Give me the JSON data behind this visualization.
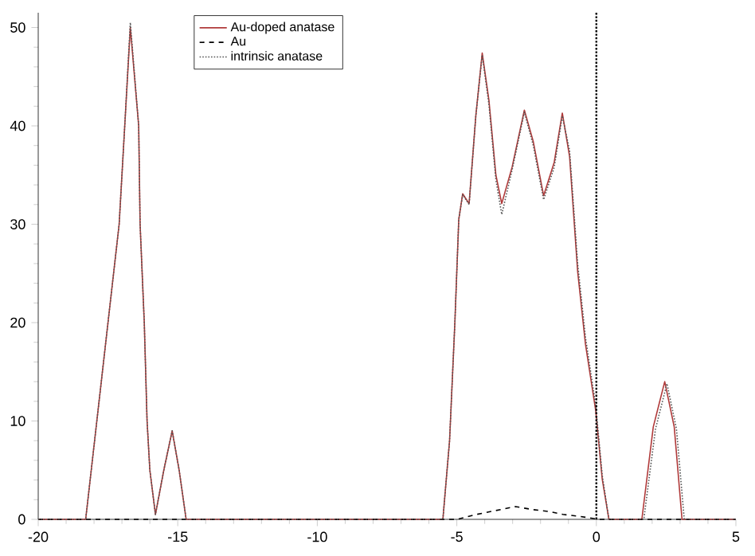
{
  "chart_data": {
    "type": "line",
    "xlim": [
      -20,
      5
    ],
    "ylim": [
      0,
      51.5
    ],
    "xticks": [
      -20,
      -15,
      -10,
      -5,
      0,
      5
    ],
    "yticks": [
      0,
      10,
      20,
      30,
      40,
      50
    ],
    "grid": false,
    "legend": "top",
    "marker": "none",
    "ref_lines": [
      {
        "axis": "x",
        "value": 0,
        "color": "#000000",
        "line_style": "dotted"
      }
    ],
    "series": [
      {
        "name": "Au-doped anatase",
        "color": "#b03a3a",
        "line_style": "solid",
        "x": [
          -20,
          -18.3,
          -17.9,
          -17.5,
          -17.1,
          -16.9,
          -16.7,
          -16.4,
          -16.35,
          -16.2,
          -16.1,
          -16.0,
          -15.8,
          -15.5,
          -15.2,
          -14.95,
          -14.7,
          -5.5,
          -5.26,
          -5.07,
          -4.93,
          -4.79,
          -4.56,
          -4.32,
          -4.09,
          -3.85,
          -3.6,
          -3.39,
          -3.02,
          -2.58,
          -2.26,
          -1.89,
          -1.51,
          -1.22,
          -0.96,
          -0.67,
          -0.39,
          -0.02,
          0.21,
          0.45,
          1.63,
          2.04,
          2.45,
          2.79,
          3.07,
          5
        ],
        "values": [
          0,
          0,
          10,
          20,
          30,
          40,
          50,
          40,
          30,
          20,
          10,
          5,
          0.5,
          5,
          9,
          5,
          0,
          0,
          8,
          20,
          30.5,
          33.1,
          32.1,
          41,
          47.4,
          42.6,
          35,
          32.1,
          35.8,
          41.6,
          38.4,
          32.9,
          36.3,
          41.3,
          36.9,
          25.2,
          17.8,
          11,
          4.1,
          0,
          0,
          9.4,
          14,
          9.4,
          0,
          0
        ]
      },
      {
        "name": "Au",
        "color": "#000000",
        "line_style": "dashed",
        "x": [
          -20,
          -5,
          -4.3,
          -3.6,
          -2.9,
          -2.3,
          -1.7,
          -1.2,
          -0.6,
          0.1,
          5
        ],
        "values": [
          0,
          0,
          0.5,
          0.9,
          1.3,
          1.0,
          0.8,
          0.5,
          0.3,
          0,
          0
        ]
      },
      {
        "name": "intrinsic anatase",
        "color": "#555555",
        "line_style": "dotted",
        "x": [
          -20,
          -18.3,
          -17.9,
          -17.5,
          -17.1,
          -16.9,
          -16.7,
          -16.4,
          -16.35,
          -16.2,
          -16.1,
          -16.0,
          -15.8,
          -15.5,
          -15.2,
          -14.95,
          -14.7,
          -5.5,
          -5.26,
          -5.07,
          -4.93,
          -4.79,
          -4.56,
          -4.32,
          -4.09,
          -3.85,
          -3.6,
          -3.39,
          -3.02,
          -2.58,
          -2.26,
          -1.89,
          -1.51,
          -1.22,
          -0.96,
          -0.67,
          -0.39,
          -0.02,
          0.21,
          0.45,
          1.7,
          2.12,
          2.53,
          2.87,
          3.15,
          5
        ],
        "values": [
          0,
          0,
          10,
          20,
          30,
          40,
          50.5,
          40,
          30,
          20,
          10,
          5,
          0.5,
          5,
          9,
          5,
          0,
          0,
          8,
          20,
          30.5,
          33,
          32,
          41,
          47.2,
          42.2,
          34.5,
          31,
          35.5,
          41.4,
          38,
          32.5,
          35.8,
          41,
          37.5,
          26,
          18.5,
          11.5,
          4.5,
          0,
          0,
          9.2,
          13.8,
          9.2,
          0,
          0
        ]
      }
    ]
  }
}
